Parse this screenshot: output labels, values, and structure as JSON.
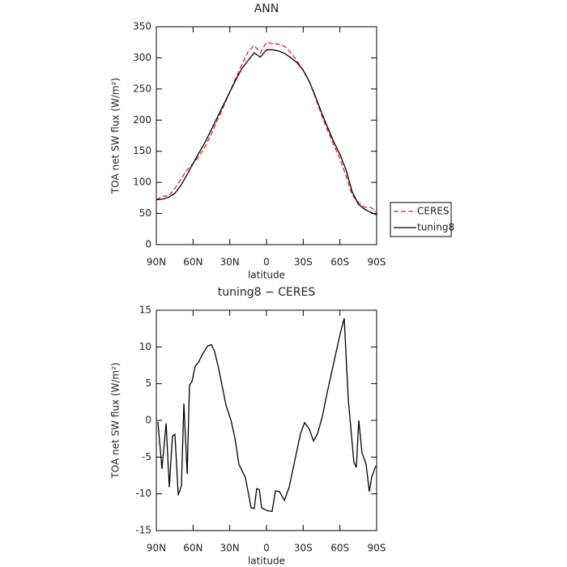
{
  "chart_data": [
    {
      "type": "line",
      "title": "ANN",
      "xlabel": "latitude",
      "ylabel": "TOA net SW flux (W/m²)",
      "x": [
        90,
        85,
        80,
        75,
        70,
        65,
        60,
        55,
        50,
        45,
        40,
        35,
        30,
        25,
        20,
        15,
        10,
        5,
        0,
        -5,
        -10,
        -15,
        -20,
        -25,
        -30,
        -35,
        -40,
        -45,
        -50,
        -55,
        -60,
        -65,
        -70,
        -75,
        -80,
        -85,
        -90
      ],
      "series": [
        {
          "name": "CERES",
          "color": "#e8211d",
          "dash": "dashed",
          "values": [
            72,
            78,
            78,
            90,
            105,
            120,
            130,
            142,
            158,
            178,
            200,
            222,
            245,
            268,
            290,
            310,
            320,
            308,
            325,
            323,
            322,
            318,
            308,
            295,
            280,
            262,
            236,
            208,
            183,
            160,
            138,
            110,
            80,
            68,
            60,
            60,
            52
          ]
        },
        {
          "name": "tuning8",
          "color": "#000000",
          "dash": "solid",
          "values": [
            72,
            73,
            76,
            82,
            95,
            112,
            130,
            148,
            165,
            185,
            205,
            225,
            245,
            265,
            283,
            296,
            308,
            301,
            313,
            313,
            311,
            307,
            300,
            292,
            280,
            262,
            238,
            212,
            188,
            165,
            145,
            120,
            85,
            65,
            57,
            52,
            48
          ]
        }
      ],
      "xlim": [
        90,
        -90
      ],
      "ylim": [
        0,
        350
      ],
      "xticks": [
        {
          "value": 90,
          "label": "90N"
        },
        {
          "value": 60,
          "label": "60N"
        },
        {
          "value": 30,
          "label": "30N"
        },
        0,
        {
          "value": -30,
          "label": "30S"
        },
        {
          "value": -60,
          "label": "60S"
        },
        {
          "value": -90,
          "label": "90S"
        }
      ],
      "yticks": [
        0,
        50,
        100,
        150,
        200,
        250,
        300,
        350
      ],
      "legend": "right"
    },
    {
      "type": "line",
      "title": "tuning8 − CERES",
      "xlabel": "latitude",
      "ylabel": "TOA net SW flux (W/m²)",
      "x": [
        88.7,
        85.4,
        82,
        79.4,
        76.8,
        74.8,
        72.1,
        69.5,
        67.5,
        64.8,
        62.9,
        60.9,
        58.2,
        55.6,
        52.3,
        48.3,
        45,
        42.4,
        39,
        33,
        29,
        25.8,
        22.5,
        17.2,
        12.6,
        10,
        8,
        5.9,
        4,
        -0.7,
        -4.6,
        -7.3,
        -10.6,
        -14.6,
        -18.5,
        -23.2,
        -27.8,
        -31.1,
        -35,
        -38.4,
        -41.7,
        -45.6,
        -49.6,
        -56.2,
        -60.2,
        -63.5,
        -66.8,
        -71.4,
        -73.4,
        -75.4,
        -78,
        -81.4,
        -84,
        -86,
        -89.3
      ],
      "values": [
        -0.2,
        -6.6,
        -0.4,
        -9.1,
        -2.1,
        -1.9,
        -10.2,
        -8.9,
        2.3,
        -7.3,
        4.8,
        5.3,
        7.4,
        7.9,
        9.0,
        10.1,
        10.3,
        9.4,
        7.0,
        2.0,
        0,
        -2.4,
        -6.0,
        -7.8,
        -11.9,
        -12.0,
        -9.3,
        -9.4,
        -11.9,
        -12.3,
        -12.4,
        -9.6,
        -9.7,
        -10.9,
        -9.1,
        -5.4,
        -1.8,
        -0.3,
        -1.2,
        -2.8,
        -1.8,
        0.5,
        3.8,
        8.8,
        11.8,
        13.9,
        2.9,
        -5.7,
        -6.4,
        0.0,
        -4.4,
        -6.0,
        -9.7,
        -7.7,
        -6.2
      ],
      "color": "#000000",
      "xlim": [
        90,
        -90
      ],
      "ylim": [
        -15,
        15
      ],
      "xticks": [
        {
          "value": 90,
          "label": "90N"
        },
        {
          "value": 60,
          "label": "60N"
        },
        {
          "value": 30,
          "label": "30N"
        },
        0,
        {
          "value": -30,
          "label": "30S"
        },
        {
          "value": -60,
          "label": "60S"
        },
        {
          "value": -90,
          "label": "90S"
        }
      ],
      "yticks": [
        -15,
        -10,
        -5,
        0,
        5,
        10,
        15
      ]
    }
  ]
}
